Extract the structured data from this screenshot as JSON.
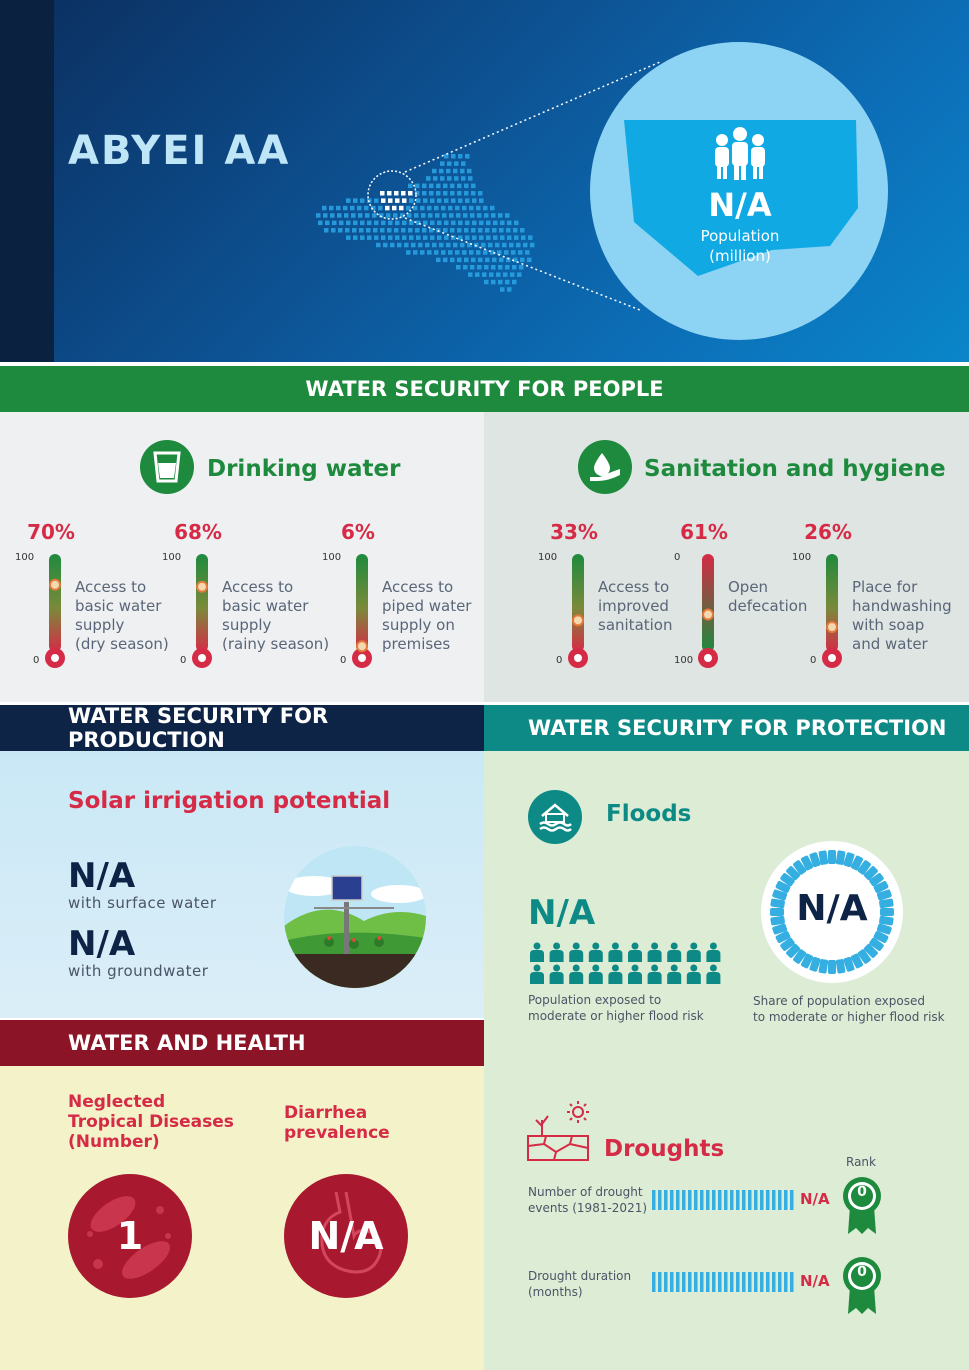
{
  "header": {
    "region": "ABYEI AA",
    "population_value": "N/A",
    "population_label_line1": "Population",
    "population_label_line2": "(million)"
  },
  "sections": {
    "people": "WATER SECURITY FOR PEOPLE",
    "production": "WATER SECURITY FOR PRODUCTION",
    "protection": "WATER SECURITY FOR PROTECTION",
    "health": "WATER AND HEALTH"
  },
  "drinking": {
    "title": "Drinking water",
    "items": [
      {
        "pct": "70%",
        "top": "100",
        "bottom": "0",
        "level": 0.7,
        "lines": [
          "Access to",
          "basic water",
          "supply",
          "(dry season)"
        ]
      },
      {
        "pct": "68%",
        "top": "100",
        "bottom": "0",
        "level": 0.68,
        "lines": [
          "Access to",
          "basic water",
          "supply",
          "(rainy season)"
        ]
      },
      {
        "pct": "6%",
        "top": "100",
        "bottom": "0",
        "level": 0.06,
        "lines": [
          "Access to",
          "piped water",
          "supply on",
          "premises"
        ]
      }
    ]
  },
  "sanitation": {
    "title": "Sanitation and hygiene",
    "items": [
      {
        "pct": "33%",
        "top": "100",
        "bottom": "0",
        "level": 0.33,
        "lines": [
          "Access to",
          "improved",
          "sanitation"
        ]
      },
      {
        "pct": "61%",
        "top": "0",
        "bottom": "100",
        "level": 0.61,
        "lines": [
          "Open",
          "defecation"
        ]
      },
      {
        "pct": "26%",
        "top": "100",
        "bottom": "0",
        "level": 0.26,
        "lines": [
          "Place for",
          "handwashing",
          "with soap",
          "and water"
        ]
      }
    ]
  },
  "production": {
    "title": "Solar irrigation potential",
    "surface_value": "N/A",
    "surface_label": "with surface water",
    "ground_value": "N/A",
    "ground_label": "with groundwater"
  },
  "protection": {
    "floods_title": "Floods",
    "flood_pop_value": "N/A",
    "flood_pop_label_1": "Population exposed to",
    "flood_pop_label_2": "moderate or higher flood risk",
    "flood_share_value": "N/A",
    "flood_share_label_1": "Share of population exposed",
    "flood_share_label_2": "to moderate or higher flood risk",
    "droughts_title": "Droughts",
    "rank_label": "Rank",
    "drought_events_label_1": "Number of drought",
    "drought_events_label_2": "events (1981-2021)",
    "drought_events_value": "N/A",
    "drought_events_rank": "0",
    "drought_duration_label_1": "Drought duration",
    "drought_duration_label_2": "(months)",
    "drought_duration_value": "N/A",
    "drought_duration_rank": "0"
  },
  "health": {
    "ntd_line1": "Neglected",
    "ntd_line2": "Tropical Diseases",
    "ntd_line3": "(Number)",
    "ntd_value": "1",
    "diarrhea_line1": "Diarrhea",
    "diarrhea_line2": "prevalence",
    "diarrhea_value": "N/A"
  },
  "colors": {
    "green": "#1e8a3e",
    "red": "#d62b46",
    "navy": "#0e2446",
    "teal": "#0e8a86",
    "maroon": "#8b1426"
  }
}
